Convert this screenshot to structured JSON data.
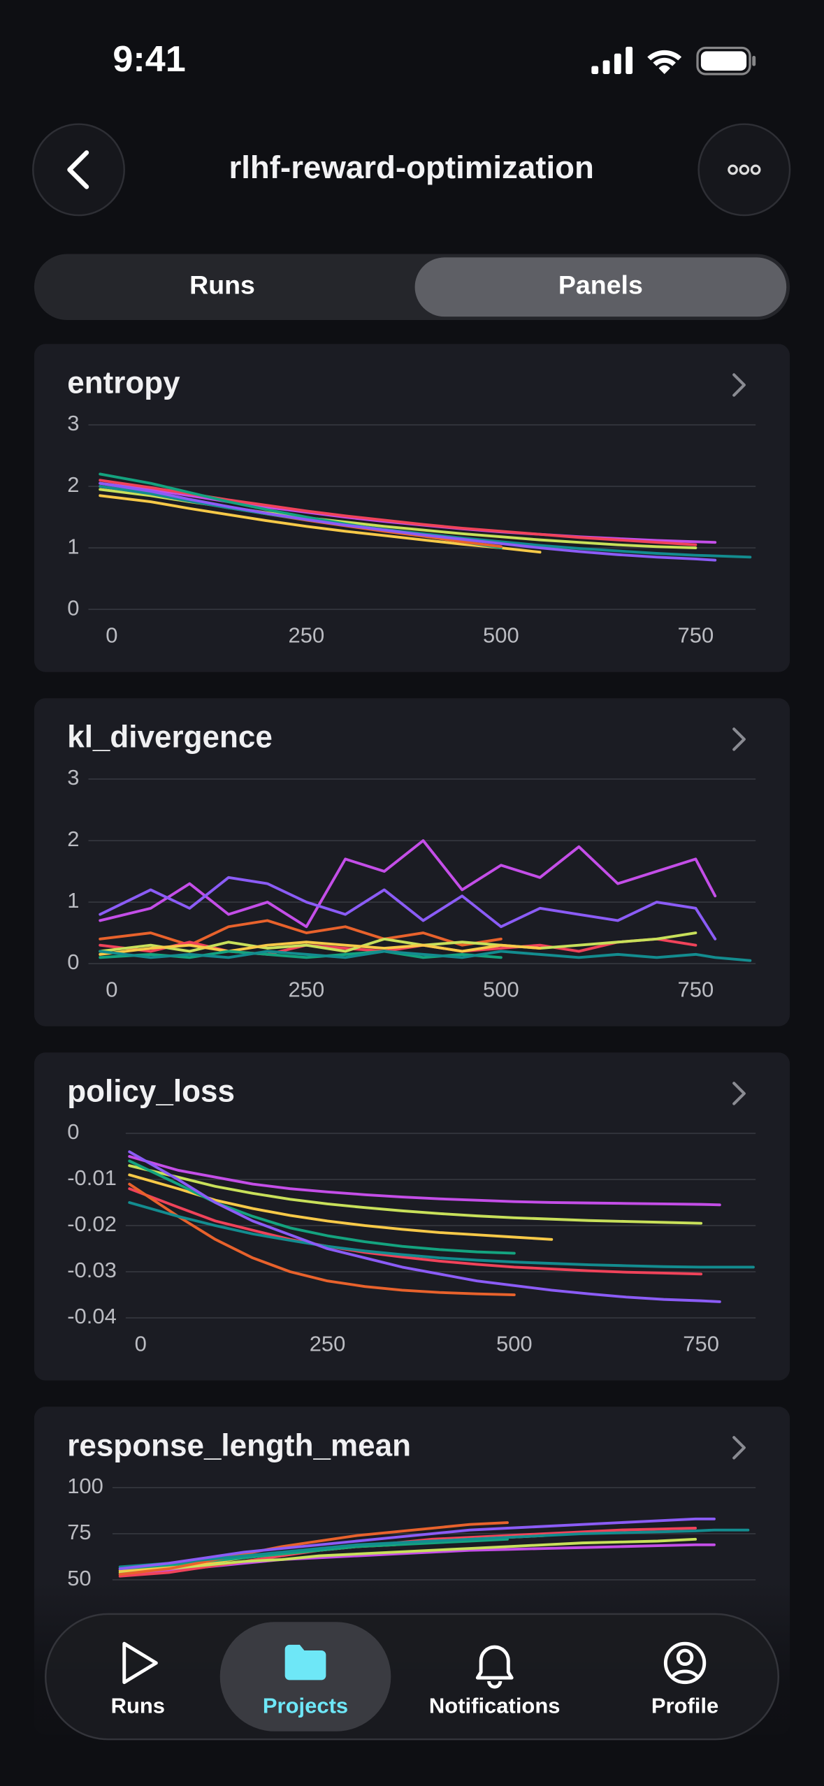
{
  "status_bar": {
    "time": "9:41"
  },
  "header": {
    "title": "rlhf-reward-optimization"
  },
  "tabs": {
    "items": [
      "Runs",
      "Panels"
    ],
    "selected": 1
  },
  "chart_data": [
    {
      "type": "line",
      "title": "entropy",
      "x": [
        -15,
        50,
        100,
        150,
        200,
        250,
        300,
        350,
        400,
        450,
        500,
        550,
        600,
        650,
        700,
        750,
        775,
        820
      ],
      "xlim": [
        -30,
        827
      ],
      "xticks": [
        0,
        250,
        500,
        750
      ],
      "ylim": [
        0,
        3
      ],
      "yticks": [
        0,
        1,
        2,
        3
      ],
      "grid": true,
      "series": [
        {
          "color": "#c44ee8",
          "values": [
            2.05,
            1.95,
            1.85,
            1.75,
            1.66,
            1.58,
            1.5,
            1.43,
            1.37,
            1.31,
            1.26,
            1.22,
            1.18,
            1.15,
            1.12,
            1.1,
            1.09,
            null
          ]
        },
        {
          "color": "#f0435a",
          "values": [
            2.1,
            1.98,
            1.88,
            1.78,
            1.69,
            1.6,
            1.52,
            1.45,
            1.38,
            1.32,
            1.27,
            1.22,
            1.17,
            1.13,
            1.09,
            1.05,
            null,
            null
          ]
        },
        {
          "color": "#c8e05a",
          "values": [
            1.95,
            1.85,
            1.75,
            1.66,
            1.57,
            1.49,
            1.42,
            1.35,
            1.29,
            1.23,
            1.18,
            1.13,
            1.09,
            1.05,
            1.02,
            1.0,
            null,
            null
          ]
        },
        {
          "color": "#f7c948",
          "values": [
            1.85,
            1.75,
            1.64,
            1.54,
            1.44,
            1.35,
            1.27,
            1.2,
            1.13,
            1.06,
            1.0,
            0.93,
            null,
            null,
            null,
            null,
            null,
            null
          ]
        },
        {
          "color": "#14a37f",
          "values": [
            2.2,
            2.05,
            1.9,
            1.75,
            1.62,
            1.5,
            1.39,
            1.29,
            1.19,
            1.1,
            1.0,
            null,
            null,
            null,
            null,
            null,
            null,
            null
          ]
        },
        {
          "color": "#e8622c",
          "values": [
            2.0,
            1.88,
            1.76,
            1.65,
            1.55,
            1.45,
            1.36,
            1.27,
            1.19,
            1.1,
            1.02,
            null,
            null,
            null,
            null,
            null,
            null,
            null
          ]
        },
        {
          "color": "#138c8f",
          "values": [
            2.0,
            1.88,
            1.76,
            1.65,
            1.55,
            1.46,
            1.38,
            1.3,
            1.23,
            1.16,
            1.1,
            1.04,
            0.99,
            0.95,
            0.91,
            0.88,
            0.87,
            0.85
          ]
        },
        {
          "color": "#8b5cf6",
          "values": [
            2.05,
            1.92,
            1.79,
            1.67,
            1.56,
            1.46,
            1.37,
            1.29,
            1.21,
            1.14,
            1.07,
            1.0,
            0.94,
            0.89,
            0.85,
            0.82,
            0.8,
            null
          ]
        }
      ]
    },
    {
      "type": "line",
      "title": "kl_divergence",
      "x": [
        -15,
        50,
        100,
        150,
        200,
        250,
        300,
        350,
        400,
        450,
        500,
        550,
        600,
        650,
        700,
        750,
        775,
        820
      ],
      "xlim": [
        -30,
        827
      ],
      "xticks": [
        0,
        250,
        500,
        750
      ],
      "ylim": [
        0,
        3
      ],
      "yticks": [
        0,
        1,
        2,
        3
      ],
      "grid": true,
      "series": [
        {
          "color": "#c44ee8",
          "values": [
            0.7,
            0.9,
            1.3,
            0.8,
            1.0,
            0.6,
            1.7,
            1.5,
            2.0,
            1.2,
            1.6,
            1.4,
            1.9,
            1.3,
            1.5,
            1.7,
            1.1,
            null
          ]
        },
        {
          "color": "#8b5cf6",
          "values": [
            0.8,
            1.2,
            0.9,
            1.4,
            1.3,
            1.0,
            0.8,
            1.2,
            0.7,
            1.1,
            0.6,
            0.9,
            0.8,
            0.7,
            1.0,
            0.9,
            0.4,
            null
          ]
        },
        {
          "color": "#e8622c",
          "values": [
            0.4,
            0.5,
            0.3,
            0.6,
            0.7,
            0.5,
            0.6,
            0.4,
            0.5,
            0.3,
            0.4,
            null,
            null,
            null,
            null,
            null,
            null,
            null
          ]
        },
        {
          "color": "#f0435a",
          "values": [
            0.3,
            0.2,
            0.35,
            0.2,
            0.15,
            0.3,
            0.25,
            0.2,
            0.3,
            0.2,
            0.25,
            0.3,
            0.2,
            0.35,
            0.4,
            0.3,
            null,
            null
          ]
        },
        {
          "color": "#c8e05a",
          "values": [
            0.2,
            0.3,
            0.2,
            0.35,
            0.25,
            0.3,
            0.2,
            0.4,
            0.3,
            0.35,
            0.3,
            0.25,
            0.3,
            0.35,
            0.4,
            0.5,
            null,
            null
          ]
        },
        {
          "color": "#f7c948",
          "values": [
            0.15,
            0.25,
            0.3,
            0.2,
            0.3,
            0.35,
            0.3,
            0.25,
            0.3,
            0.2,
            0.3,
            0.25,
            null,
            null,
            null,
            null,
            null,
            null
          ]
        },
        {
          "color": "#14a37f",
          "values": [
            0.1,
            0.15,
            0.1,
            0.2,
            0.15,
            0.1,
            0.15,
            0.2,
            0.1,
            0.15,
            0.1,
            null,
            null,
            null,
            null,
            null,
            null,
            null
          ]
        },
        {
          "color": "#138c8f",
          "values": [
            0.2,
            0.1,
            0.15,
            0.1,
            0.2,
            0.15,
            0.1,
            0.2,
            0.15,
            0.1,
            0.2,
            0.15,
            0.1,
            0.15,
            0.1,
            0.15,
            0.1,
            0.05
          ]
        }
      ]
    },
    {
      "type": "line",
      "title": "policy_loss",
      "x": [
        -15,
        50,
        100,
        150,
        200,
        250,
        300,
        350,
        400,
        450,
        500,
        550,
        600,
        650,
        700,
        750,
        775,
        820
      ],
      "xlim": [
        -20,
        823
      ],
      "xticks": [
        0,
        250,
        500,
        750
      ],
      "ylim": [
        -0.04,
        0
      ],
      "yticks": [
        0,
        -0.01,
        -0.02,
        -0.03,
        -0.04
      ],
      "grid": true,
      "series": [
        {
          "color": "#c44ee8",
          "values": [
            -0.005,
            -0.008,
            -0.0095,
            -0.011,
            -0.012,
            -0.0127,
            -0.0133,
            -0.0138,
            -0.0142,
            -0.0145,
            -0.0148,
            -0.015,
            -0.0151,
            -0.0152,
            -0.0153,
            -0.0154,
            -0.0155,
            null
          ]
        },
        {
          "color": "#f0435a",
          "values": [
            -0.012,
            -0.016,
            -0.019,
            -0.021,
            -0.023,
            -0.0245,
            -0.0258,
            -0.0268,
            -0.0277,
            -0.0284,
            -0.029,
            -0.0294,
            -0.0298,
            -0.0301,
            -0.0303,
            -0.0305,
            null,
            null
          ]
        },
        {
          "color": "#c8e05a",
          "values": [
            -0.007,
            -0.0095,
            -0.0115,
            -0.013,
            -0.0143,
            -0.0153,
            -0.0161,
            -0.0168,
            -0.0174,
            -0.0179,
            -0.0183,
            -0.0186,
            -0.0189,
            -0.0191,
            -0.0193,
            -0.0195,
            null,
            null
          ]
        },
        {
          "color": "#f7c948",
          "values": [
            -0.009,
            -0.012,
            -0.0145,
            -0.0163,
            -0.0178,
            -0.019,
            -0.02,
            -0.0208,
            -0.0215,
            -0.022,
            -0.0225,
            -0.023,
            null,
            null,
            null,
            null,
            null,
            null
          ]
        },
        {
          "color": "#14a37f",
          "values": [
            -0.006,
            -0.011,
            -0.015,
            -0.018,
            -0.0205,
            -0.0222,
            -0.0235,
            -0.0245,
            -0.0252,
            -0.0257,
            -0.026,
            null,
            null,
            null,
            null,
            null,
            null,
            null
          ]
        },
        {
          "color": "#e8622c",
          "values": [
            -0.011,
            -0.018,
            -0.023,
            -0.027,
            -0.03,
            -0.032,
            -0.0332,
            -0.034,
            -0.0345,
            -0.0348,
            -0.035,
            null,
            null,
            null,
            null,
            null,
            null,
            null
          ]
        },
        {
          "color": "#138c8f",
          "values": [
            -0.015,
            -0.018,
            -0.02,
            -0.0218,
            -0.0232,
            -0.0245,
            -0.0255,
            -0.0263,
            -0.027,
            -0.0275,
            -0.0279,
            -0.0282,
            -0.0285,
            -0.0287,
            -0.0289,
            -0.029,
            -0.029,
            -0.029
          ]
        },
        {
          "color": "#8b5cf6",
          "values": [
            -0.004,
            -0.01,
            -0.015,
            -0.019,
            -0.022,
            -0.025,
            -0.027,
            -0.029,
            -0.0305,
            -0.032,
            -0.033,
            -0.034,
            -0.0348,
            -0.0355,
            -0.036,
            -0.0363,
            -0.0365,
            null
          ]
        }
      ]
    },
    {
      "type": "line",
      "title": "response_length_mean",
      "x": [
        -15,
        50,
        100,
        150,
        200,
        250,
        300,
        350,
        400,
        450,
        500,
        550,
        600,
        650,
        700,
        750,
        775,
        820
      ],
      "xlim": [
        -25,
        830
      ],
      "ylim": [
        0,
        100
      ],
      "yticks": [
        50,
        75,
        100
      ],
      "grid": true,
      "series": [
        {
          "color": "#c44ee8",
          "values": [
            53,
            55,
            57,
            59,
            61,
            62,
            63,
            64,
            65,
            66,
            66.5,
            67,
            67.5,
            68,
            68.5,
            69,
            69,
            null
          ]
        },
        {
          "color": "#f0435a",
          "values": [
            52,
            54,
            57,
            60,
            63,
            66,
            68,
            70,
            72,
            73,
            74,
            75,
            76,
            77,
            77.5,
            78,
            null,
            null
          ]
        },
        {
          "color": "#c8e05a",
          "values": [
            54,
            56,
            58,
            60,
            61,
            63,
            64,
            65,
            66,
            67,
            68,
            69,
            70,
            70.5,
            71,
            72,
            null,
            null
          ]
        },
        {
          "color": "#f7c948",
          "values": [
            55,
            57,
            59,
            62,
            64,
            66,
            68,
            69,
            71,
            72,
            73,
            74,
            null,
            null,
            null,
            null,
            null,
            null
          ]
        },
        {
          "color": "#14a37f",
          "values": [
            56,
            58,
            60,
            62,
            64,
            66,
            68,
            69,
            70,
            71,
            72,
            null,
            null,
            null,
            null,
            null,
            null,
            null
          ]
        },
        {
          "color": "#e8622c",
          "values": [
            53,
            56,
            60,
            64,
            68,
            71,
            74,
            76,
            78,
            80,
            81,
            null,
            null,
            null,
            null,
            null,
            null,
            null
          ]
        },
        {
          "color": "#138c8f",
          "values": [
            57,
            59,
            61,
            63,
            65,
            67,
            69,
            70,
            71,
            72,
            73,
            74,
            75,
            75.5,
            76,
            76.5,
            77,
            77
          ]
        },
        {
          "color": "#8b5cf6",
          "values": [
            56,
            59,
            62,
            65,
            67,
            69,
            71,
            73,
            75,
            77,
            78,
            79,
            80,
            81,
            82,
            83,
            83,
            null
          ]
        }
      ]
    }
  ],
  "nav": {
    "items": [
      "Runs",
      "Projects",
      "Notifications",
      "Profile"
    ],
    "selected": 1
  }
}
